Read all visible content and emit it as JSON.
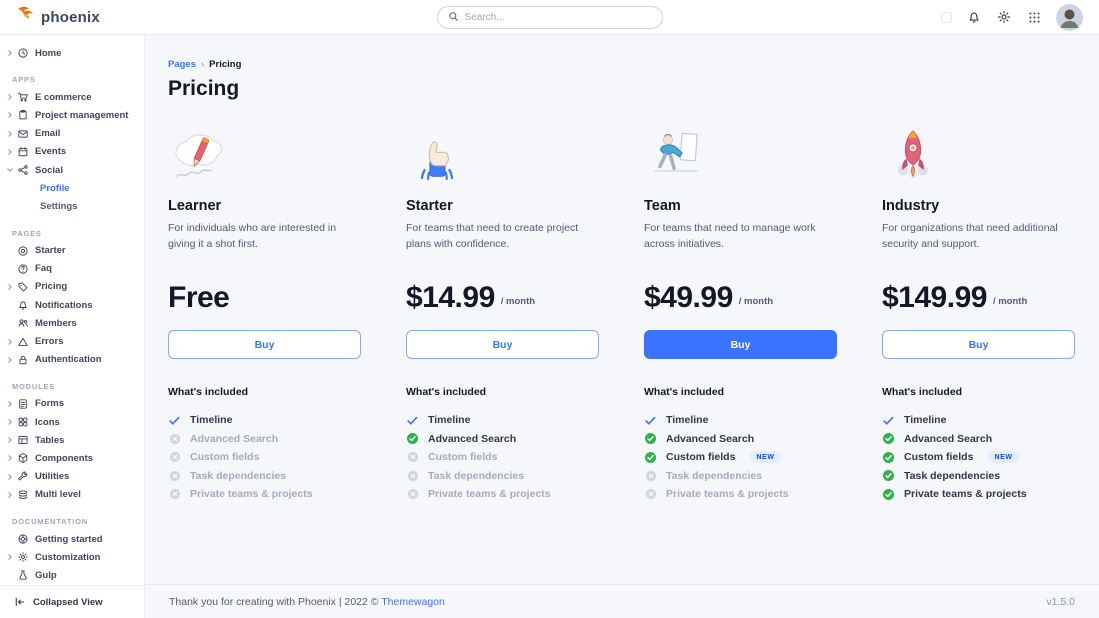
{
  "app": {
    "name": "phoenix"
  },
  "colors": {
    "primary": "#3874ff",
    "success": "#2cb34a",
    "muted": "#b2b8c8"
  },
  "navbar": {
    "search_placeholder": "Search...",
    "icons": [
      "theme-toggle",
      "bell",
      "gear",
      "apps-grid",
      "avatar"
    ]
  },
  "sidebar": {
    "sections": [
      {
        "label": "",
        "items": [
          {
            "label": "Home",
            "icon": "clock",
            "expandable": true
          }
        ]
      },
      {
        "label": "APPS",
        "items": [
          {
            "label": "E commerce",
            "icon": "cart",
            "expandable": true
          },
          {
            "label": "Project management",
            "icon": "clipboard",
            "expandable": true
          },
          {
            "label": "Email",
            "icon": "envelope",
            "expandable": true
          },
          {
            "label": "Events",
            "icon": "calendar",
            "expandable": true
          },
          {
            "label": "Social",
            "icon": "share",
            "expandable": true,
            "expanded": true,
            "children": [
              {
                "label": "Profile",
                "active": true
              },
              {
                "label": "Settings",
                "active": false
              }
            ]
          }
        ]
      },
      {
        "label": "PAGES",
        "items": [
          {
            "label": "Starter",
            "icon": "spinner"
          },
          {
            "label": "Faq",
            "icon": "question"
          },
          {
            "label": "Pricing",
            "icon": "tag",
            "expandable": true
          },
          {
            "label": "Notifications",
            "icon": "bell"
          },
          {
            "label": "Members",
            "icon": "users"
          },
          {
            "label": "Errors",
            "icon": "warning",
            "expandable": true
          },
          {
            "label": "Authentication",
            "icon": "lock",
            "expandable": true
          }
        ]
      },
      {
        "label": "MODULES",
        "items": [
          {
            "label": "Forms",
            "icon": "file",
            "expandable": true
          },
          {
            "label": "Icons",
            "icon": "grid4",
            "expandable": true
          },
          {
            "label": "Tables",
            "icon": "table",
            "expandable": true
          },
          {
            "label": "Components",
            "icon": "box",
            "expandable": true
          },
          {
            "label": "Utilities",
            "icon": "wrench",
            "expandable": true
          },
          {
            "label": "Multi level",
            "icon": "layers",
            "expandable": true
          }
        ]
      },
      {
        "label": "DOCUMENTATION",
        "items": [
          {
            "label": "Getting started",
            "icon": "lifering"
          },
          {
            "label": "Customization",
            "icon": "gear",
            "expandable": true
          },
          {
            "label": "Gulp",
            "icon": "flask"
          }
        ]
      }
    ],
    "collapsed_label": "Collapsed View"
  },
  "breadcrumb": {
    "parent": "Pages",
    "separator": "›",
    "current": "Pricing"
  },
  "page": {
    "title": "Pricing"
  },
  "pricing": {
    "included_label": "What's included",
    "plans": [
      {
        "name": "Learner",
        "description": "For individuals who are interested in giving it a shot first.",
        "price": "Free",
        "period": "",
        "buy_label": "Buy",
        "featured": false,
        "illustration": "pencil",
        "features": [
          {
            "label": "Timeline",
            "state": "basic"
          },
          {
            "label": "Advanced Search",
            "state": "excluded"
          },
          {
            "label": "Custom fields",
            "state": "excluded"
          },
          {
            "label": "Task dependencies",
            "state": "excluded"
          },
          {
            "label": "Private teams & projects",
            "state": "excluded"
          }
        ]
      },
      {
        "name": "Starter",
        "description": "For teams that need to create project plans with confidence.",
        "price": "$14.99",
        "period": "/ month",
        "buy_label": "Buy",
        "featured": false,
        "illustration": "thumbs-up",
        "features": [
          {
            "label": "Timeline",
            "state": "basic"
          },
          {
            "label": "Advanced Search",
            "state": "included"
          },
          {
            "label": "Custom fields",
            "state": "excluded"
          },
          {
            "label": "Task dependencies",
            "state": "excluded"
          },
          {
            "label": "Private teams & projects",
            "state": "excluded"
          }
        ]
      },
      {
        "name": "Team",
        "description": "For teams that need to manage work across initiatives.",
        "price": "$49.99",
        "period": "/ month",
        "buy_label": "Buy",
        "featured": true,
        "illustration": "pushing-person",
        "features": [
          {
            "label": "Timeline",
            "state": "basic"
          },
          {
            "label": "Advanced Search",
            "state": "included"
          },
          {
            "label": "Custom fields",
            "state": "included",
            "badge": "NEW"
          },
          {
            "label": "Task dependencies",
            "state": "excluded"
          },
          {
            "label": "Private teams & projects",
            "state": "excluded"
          }
        ]
      },
      {
        "name": "Industry",
        "description": "For organizations that need additional security and support.",
        "price": "$149.99",
        "period": "/ month",
        "buy_label": "Buy",
        "featured": false,
        "illustration": "rocket",
        "features": [
          {
            "label": "Timeline",
            "state": "basic"
          },
          {
            "label": "Advanced Search",
            "state": "included"
          },
          {
            "label": "Custom fields",
            "state": "included",
            "badge": "NEW"
          },
          {
            "label": "Task dependencies",
            "state": "included"
          },
          {
            "label": "Private teams & projects",
            "state": "included"
          }
        ]
      }
    ]
  },
  "footer": {
    "thanks": "Thank you for creating with Phoenix | 2022 ©",
    "link_label": "Themewagon",
    "version": "v1.5.0"
  }
}
